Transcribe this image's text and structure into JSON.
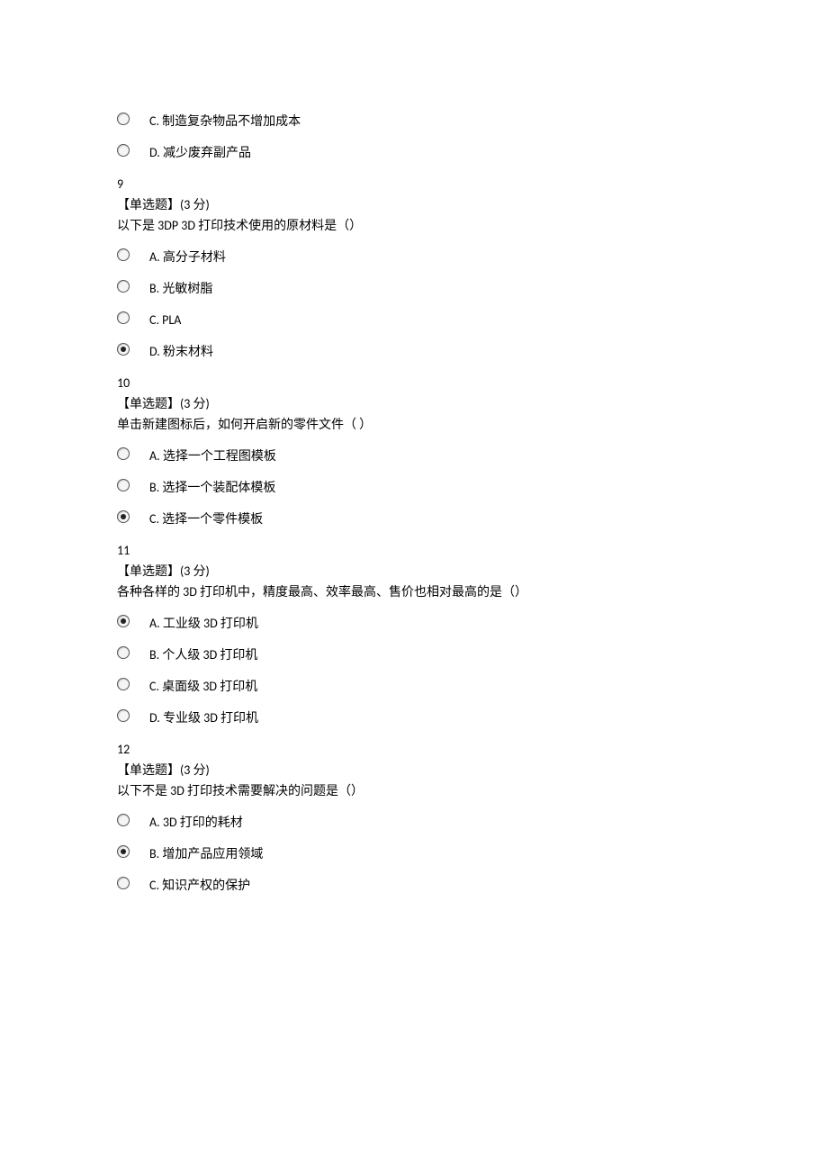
{
  "colors": {
    "text": "#000000",
    "background": "#ffffff",
    "radio_border": "#555555",
    "radio_fill": "#222222"
  },
  "typography": {
    "base_font_size_pt": 10.5,
    "line_height": 1.5
  },
  "leading_options": [
    {
      "label": "C. 制造复杂物品不增加成本",
      "selected": false
    },
    {
      "label": "D. 减少废弃副产品",
      "selected": false
    }
  ],
  "questions": [
    {
      "number": "9",
      "type": "【单选题】(3 分)",
      "stem": "以下是 3DP 3D 打印技术使用的原材料是（）",
      "options": [
        {
          "label": "A. 高分子材料",
          "selected": false
        },
        {
          "label": "B. 光敏树脂",
          "selected": false
        },
        {
          "label": "C. PLA",
          "selected": false
        },
        {
          "label": "D. 粉末材料",
          "selected": true
        }
      ]
    },
    {
      "number": "10",
      "type": "【单选题】(3 分)",
      "stem": "单击新建图标后，如何开启新的零件文件（  ）",
      "options": [
        {
          "label": "A. 选择一个工程图模板",
          "selected": false
        },
        {
          "label": "B. 选择一个装配体模板",
          "selected": false
        },
        {
          "label": "C. 选择一个零件模板",
          "selected": true
        }
      ]
    },
    {
      "number": "11",
      "type": "【单选题】(3 分)",
      "stem": "各种各样的 3D 打印机中，精度最高、效率最高、售价也相对最高的是（）",
      "options": [
        {
          "label": "A. 工业级 3D 打印机",
          "selected": true
        },
        {
          "label": "B. 个人级 3D 打印机",
          "selected": false
        },
        {
          "label": "C. 桌面级 3D 打印机",
          "selected": false
        },
        {
          "label": "D. 专业级 3D 打印机",
          "selected": false
        }
      ]
    },
    {
      "number": "12",
      "type": "【单选题】(3 分)",
      "stem": "以下不是 3D 打印技术需要解决的问题是（）",
      "options": [
        {
          "label": "A. 3D 打印的耗材",
          "selected": false
        },
        {
          "label": "B. 增加产品应用领域",
          "selected": true
        },
        {
          "label": "C. 知识产权的保护",
          "selected": false
        }
      ]
    }
  ]
}
